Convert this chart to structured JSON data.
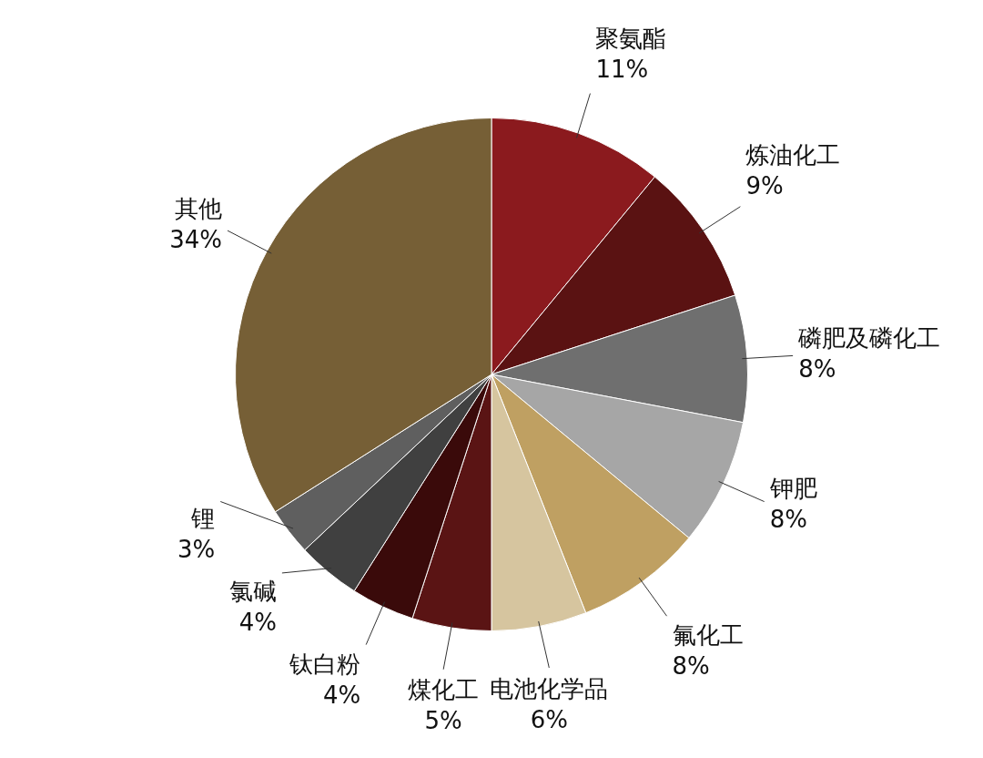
{
  "chart_data": {
    "type": "pie",
    "categories": [
      "聚氨酯",
      "炼油化工",
      "磷肥及磷化工",
      "钾肥",
      "氟化工",
      "电池化学品",
      "煤化工",
      "钛白粉",
      "氯碱",
      "锂",
      "其他"
    ],
    "values": [
      11,
      9,
      8,
      8,
      8,
      6,
      5,
      4,
      4,
      3,
      34
    ],
    "value_labels": [
      "11%",
      "9%",
      "8%",
      "8%",
      "8%",
      "6%",
      "5%",
      "4%",
      "4%",
      "3%",
      "34%"
    ],
    "colors": [
      "#8b1a1e",
      "#5a1212",
      "#6f6f6f",
      "#a6a6a6",
      "#bfa062",
      "#d6c59f",
      "#5a1414",
      "#3a0a0a",
      "#404040",
      "#5f5f5f",
      "#765f36"
    ],
    "legend": false
  }
}
